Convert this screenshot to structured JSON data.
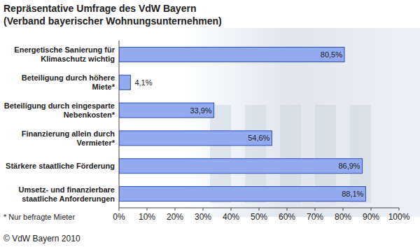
{
  "chart_data": {
    "type": "bar",
    "orientation": "horizontal",
    "title": "Repräsentative Umfrage des VdW Bayern",
    "subtitle": "(Verband bayerischer Wohnungsunternehmen)",
    "categories": [
      "Energetische Sanierung für Klimaschutz wichtig",
      "Beteiligung durch höhere Miete*",
      "Beteiligung durch eingesparte Nebenkosten*",
      "Finanzierung allein durch Vermieter*",
      "Stärkere staatliche Förderung",
      "Umsetz- und finanzierbare staatliche Anforderungen"
    ],
    "values": [
      80.5,
      4.1,
      33.9,
      54.6,
      86.9,
      88.1
    ],
    "value_labels": [
      "80,5%",
      "4,1%",
      "33,9%",
      "54,6%",
      "86,9%",
      "88,1%"
    ],
    "color": "#93aaf0",
    "xlim": [
      0,
      100
    ],
    "xticks": [
      {
        "value": 0,
        "label": "0%"
      },
      {
        "value": 10,
        "label": "10%"
      },
      {
        "value": 20,
        "label": "20%"
      },
      {
        "value": 30,
        "label": "30%"
      },
      {
        "value": 40,
        "label": "40%"
      },
      {
        "value": 50,
        "label": "50%"
      },
      {
        "value": 60,
        "label": "60%"
      },
      {
        "value": 70,
        "label": "70%"
      },
      {
        "value": 80,
        "label": "80%"
      },
      {
        "value": 90,
        "label": "90%"
      },
      {
        "value": 100,
        "label": "100%"
      }
    ],
    "grid": false,
    "data_labels": true,
    "annotations": [
      "* Nur befragte Mieter",
      "© VdW Bayern 2010"
    ]
  }
}
